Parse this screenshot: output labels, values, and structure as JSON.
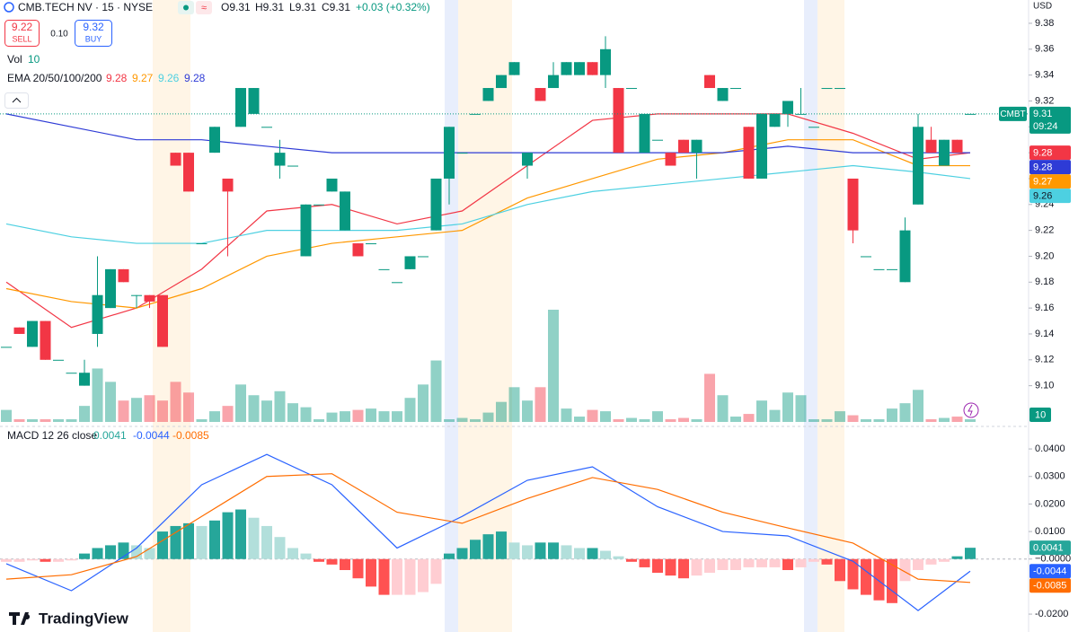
{
  "header": {
    "symbol": "CMB.TECH NV · 15 · NYSE",
    "ohlc": [
      "O9.31",
      "H9.31",
      "L9.31",
      "C9.31"
    ],
    "change": "+0.03 (+0.32%)",
    "sell_price": "9.22",
    "sell": "SELL",
    "spread": "0.10",
    "buy_price": "9.32",
    "buy": "BUY",
    "currency": "USD",
    "brand": "TradingView"
  },
  "chart_data": [
    {
      "type": "candlestick",
      "symbol_badge": "CMBT",
      "countdown": "09:24",
      "up_color": "#089981",
      "down_color": "#f23645",
      "ylim": [
        9.072,
        9.398
      ],
      "yticks": [
        {
          "value": 9.1,
          "label": "9.10"
        },
        {
          "value": 9.12,
          "label": "9.12"
        },
        {
          "value": 9.14,
          "label": "9.14"
        },
        {
          "value": 9.16,
          "label": "9.16"
        },
        {
          "value": 9.18,
          "label": "9.18"
        },
        {
          "value": 9.2,
          "label": "9.20"
        },
        {
          "value": 9.22,
          "label": "9.22"
        },
        {
          "value": 9.24,
          "label": "9.24"
        },
        {
          "value": 9.26,
          "label": "9.26"
        },
        {
          "value": 9.28,
          "label": "9.28"
        },
        {
          "value": 9.3,
          "label": "9.30"
        },
        {
          "value": 9.32,
          "label": "9.32"
        },
        {
          "value": 9.34,
          "label": "9.34"
        },
        {
          "value": 9.36,
          "label": "9.36"
        },
        {
          "value": 9.38,
          "label": "9.38"
        }
      ],
      "open": [
        9.13,
        9.145,
        9.13,
        9.15,
        9.12,
        9.11,
        9.1,
        9.14,
        9.16,
        9.19,
        9.17,
        9.17,
        9.17,
        9.28,
        9.28,
        9.21,
        9.28,
        9.26,
        9.3,
        9.31,
        9.3,
        9.27,
        9.27,
        9.2,
        9.24,
        9.25,
        9.22,
        9.21,
        9.21,
        9.19,
        9.18,
        9.19,
        9.2,
        9.22,
        9.26,
        9.28,
        9.31,
        9.32,
        9.33,
        9.34,
        9.27,
        9.33,
        9.33,
        9.34,
        9.34,
        9.35,
        9.34,
        9.33,
        9.33,
        9.28,
        9.29,
        9.28,
        9.29,
        9.28,
        9.34,
        9.32,
        9.33,
        9.3,
        9.26,
        9.3,
        9.31,
        9.31,
        9.3,
        9.33,
        9.33,
        9.26,
        9.2,
        9.19,
        9.19,
        9.18,
        9.24,
        9.29,
        9.27,
        9.29,
        9.31
      ],
      "high": [
        9.13,
        9.145,
        9.15,
        9.15,
        9.12,
        9.11,
        9.12,
        9.2,
        9.19,
        9.19,
        9.17,
        9.17,
        9.17,
        9.28,
        9.28,
        9.21,
        9.3,
        9.26,
        9.33,
        9.33,
        9.3,
        9.29,
        9.27,
        9.24,
        9.24,
        9.26,
        9.25,
        9.21,
        9.21,
        9.19,
        9.18,
        9.2,
        9.2,
        9.26,
        9.3,
        9.28,
        9.31,
        9.33,
        9.34,
        9.35,
        9.28,
        9.33,
        9.35,
        9.35,
        9.35,
        9.35,
        9.37,
        9.33,
        9.33,
        9.31,
        9.29,
        9.28,
        9.29,
        9.29,
        9.34,
        9.33,
        9.33,
        9.3,
        9.31,
        9.31,
        9.32,
        9.33,
        9.3,
        9.33,
        9.33,
        9.26,
        9.2,
        9.19,
        9.19,
        9.23,
        9.31,
        9.3,
        9.29,
        9.29,
        9.31
      ],
      "low": [
        9.13,
        9.14,
        9.13,
        9.12,
        9.12,
        9.11,
        9.1,
        9.13,
        9.16,
        9.18,
        9.16,
        9.16,
        9.13,
        9.27,
        9.25,
        9.21,
        9.28,
        9.2,
        9.3,
        9.31,
        9.3,
        9.26,
        9.27,
        9.2,
        9.24,
        9.25,
        9.22,
        9.2,
        9.21,
        9.19,
        9.18,
        9.19,
        9.2,
        9.22,
        9.24,
        9.28,
        9.31,
        9.32,
        9.33,
        9.34,
        9.26,
        9.32,
        9.33,
        9.34,
        9.34,
        9.34,
        9.33,
        9.28,
        9.33,
        9.28,
        9.29,
        9.27,
        9.28,
        9.26,
        9.33,
        9.32,
        9.33,
        9.26,
        9.26,
        9.3,
        9.3,
        9.31,
        9.3,
        9.33,
        9.33,
        9.21,
        9.2,
        9.19,
        9.19,
        9.18,
        9.24,
        9.28,
        9.27,
        9.28,
        9.31
      ],
      "close": [
        9.13,
        9.14,
        9.15,
        9.12,
        9.12,
        9.11,
        9.11,
        9.17,
        9.19,
        9.18,
        9.17,
        9.165,
        9.13,
        9.27,
        9.25,
        9.21,
        9.3,
        9.25,
        9.33,
        9.33,
        9.3,
        9.28,
        9.27,
        9.24,
        9.24,
        9.26,
        9.25,
        9.2,
        9.21,
        9.19,
        9.18,
        9.2,
        9.2,
        9.26,
        9.3,
        9.28,
        9.31,
        9.33,
        9.34,
        9.35,
        9.28,
        9.32,
        9.34,
        9.35,
        9.35,
        9.34,
        9.36,
        9.28,
        9.33,
        9.31,
        9.29,
        9.27,
        9.28,
        9.29,
        9.33,
        9.33,
        9.33,
        9.26,
        9.31,
        9.31,
        9.32,
        9.31,
        9.3,
        9.33,
        9.33,
        9.22,
        9.2,
        9.19,
        9.19,
        9.22,
        9.3,
        9.28,
        9.29,
        9.28,
        9.31
      ],
      "volume": {
        "name": "Vol",
        "values": [
          45,
          10,
          10,
          10,
          10,
          10,
          60,
          200,
          150,
          80,
          90,
          100,
          80,
          150,
          110,
          10,
          40,
          60,
          140,
          100,
          80,
          115,
          70,
          55,
          10,
          35,
          40,
          45,
          50,
          40,
          40,
          90,
          140,
          230,
          10,
          15,
          10,
          35,
          75,
          130,
          80,
          130,
          420,
          50,
          20,
          45,
          40,
          10,
          15,
          10,
          40,
          10,
          15,
          10,
          180,
          100,
          20,
          30,
          80,
          45,
          110,
          100,
          10,
          10,
          40,
          25,
          10,
          10,
          50,
          70,
          120,
          10,
          15,
          20,
          10
        ]
      },
      "indicator": "EMA 20/50/100/200",
      "series": [
        {
          "color": "#f23645",
          "x": [
            0,
            5,
            10,
            15,
            20,
            25,
            30,
            35,
            40,
            45,
            50,
            55,
            60,
            65,
            70,
            74
          ],
          "values": [
            9.18,
            9.145,
            9.16,
            9.19,
            9.235,
            9.24,
            9.225,
            9.235,
            9.27,
            9.305,
            9.31,
            9.31,
            9.31,
            9.295,
            9.275,
            9.28
          ]
        },
        {
          "color": "#ff9800",
          "x": [
            0,
            5,
            10,
            15,
            20,
            25,
            30,
            35,
            40,
            45,
            50,
            55,
            60,
            65,
            70,
            74
          ],
          "values": [
            9.175,
            9.165,
            9.16,
            9.175,
            9.2,
            9.21,
            9.215,
            9.22,
            9.245,
            9.26,
            9.275,
            9.28,
            9.29,
            9.29,
            9.27,
            9.27
          ]
        },
        {
          "color": "#4dd0e1",
          "x": [
            0,
            5,
            10,
            15,
            20,
            25,
            30,
            35,
            40,
            45,
            50,
            55,
            60,
            65,
            70,
            74
          ],
          "values": [
            9.225,
            9.215,
            9.21,
            9.21,
            9.22,
            9.22,
            9.22,
            9.225,
            9.24,
            9.25,
            9.255,
            9.26,
            9.265,
            9.27,
            9.265,
            9.26
          ]
        },
        {
          "color": "#2e3bd6",
          "x": [
            0,
            5,
            10,
            15,
            20,
            25,
            30,
            35,
            40,
            45,
            50,
            55,
            60,
            65,
            70,
            74
          ],
          "values": [
            9.31,
            9.3,
            9.29,
            9.29,
            9.285,
            9.28,
            9.28,
            9.28,
            9.28,
            9.28,
            9.28,
            9.28,
            9.285,
            9.28,
            9.28,
            9.28
          ]
        }
      ]
    },
    {
      "type": "macd",
      "title": "MACD 12 26 close",
      "ylim": [
        -0.0265,
        0.0472
      ],
      "yticks": [
        {
          "value": 0.04,
          "label": "0.0400"
        },
        {
          "value": 0.03,
          "label": "0.0300"
        },
        {
          "value": 0.02,
          "label": "0.0200"
        },
        {
          "value": 0.01,
          "label": "0.0100"
        },
        {
          "value": 0,
          "label": "−0.0000"
        },
        {
          "value": -0.02,
          "label": "-0.0200"
        }
      ],
      "histogram_colors": [
        "#26a69a",
        "#b2dfdb",
        "#ff5252",
        "#ffcdd2"
      ],
      "histogram": [
        -0.001,
        -0.001,
        -0.0005,
        -0.001,
        -0.001,
        -0.0005,
        0.002,
        0.004,
        0.005,
        0.006,
        0.005,
        0.004,
        0.01,
        0.012,
        0.013,
        0.012,
        0.014,
        0.017,
        0.018,
        0.015,
        0.012,
        0.008,
        0.004,
        0.002,
        -0.001,
        -0.002,
        -0.004,
        -0.007,
        -0.01,
        -0.013,
        -0.013,
        -0.013,
        -0.012,
        -0.009,
        0.002,
        0.004,
        0.007,
        0.009,
        0.01,
        0.006,
        0.005,
        0.006,
        0.006,
        0.005,
        0.004,
        0.004,
        0.003,
        0.001,
        -0.001,
        -0.003,
        -0.005,
        -0.006,
        -0.007,
        -0.006,
        -0.005,
        -0.004,
        -0.004,
        -0.003,
        -0.003,
        -0.003,
        -0.004,
        -0.003,
        -0.001,
        -0.002,
        -0.008,
        -0.011,
        -0.013,
        -0.015,
        -0.016,
        -0.008,
        -0.004,
        -0.002,
        -0.001,
        0.001,
        0.0041
      ],
      "series": [
        {
          "color": "#2962ff",
          "x": [
            0,
            5,
            10,
            15,
            20,
            25,
            30,
            35,
            40,
            45,
            50,
            55,
            60,
            65,
            70,
            74
          ],
          "values": [
            -0.0017,
            -0.0115,
            0.004,
            0.027,
            0.038,
            0.027,
            0.004,
            0.0155,
            0.0286,
            0.0335,
            0.019,
            0.01,
            0.0084,
            -0.0008,
            -0.0187,
            -0.0044
          ]
        },
        {
          "color": "#ff6d00",
          "x": [
            0,
            5,
            10,
            15,
            20,
            25,
            30,
            35,
            40,
            45,
            50,
            55,
            60,
            65,
            70,
            74
          ],
          "values": [
            -0.0073,
            -0.0057,
            0.0009,
            0.0155,
            0.03,
            0.031,
            0.017,
            0.013,
            0.022,
            0.0296,
            0.0253,
            0.017,
            0.0113,
            0.0058,
            -0.0073,
            -0.0085
          ]
        }
      ]
    }
  ]
}
